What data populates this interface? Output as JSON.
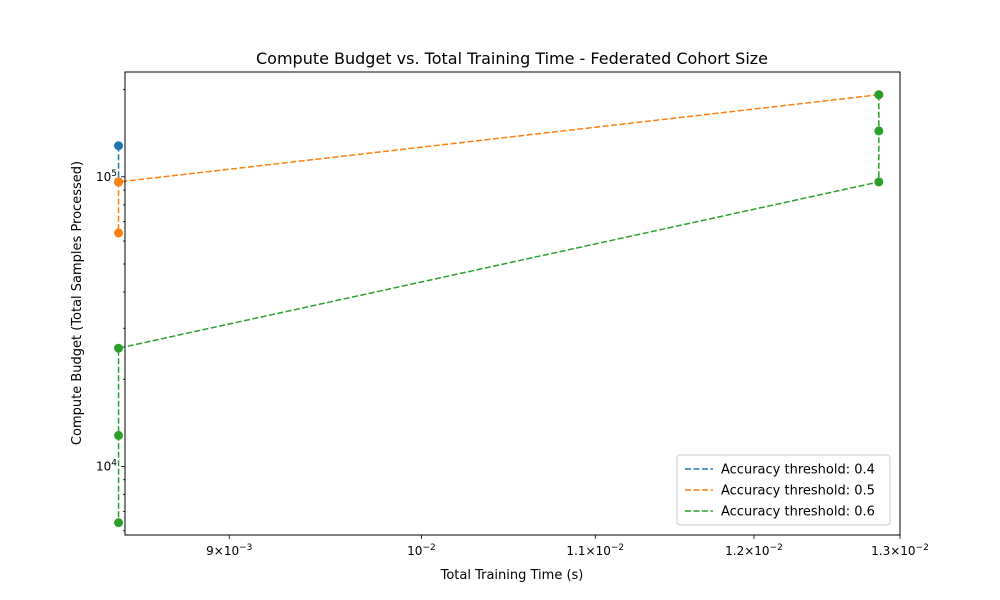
{
  "chart_data": {
    "type": "line",
    "title": "Compute Budget vs. Total Training Time - Federated Cohort Size",
    "xlabel": "Total Training Time (s)",
    "ylabel": "Compute Budget (Total Samples Processed)",
    "x_scale": "log",
    "y_scale": "log",
    "xlim": [
      0.0085,
      0.013
    ],
    "ylim": [
      5800,
      230000
    ],
    "grid": false,
    "legend_position": "lower-right",
    "x_ticks": [
      {
        "value": 0.009,
        "base": "9",
        "mult": "×",
        "pow": "10",
        "exp": "−3"
      },
      {
        "value": 0.01,
        "base": "",
        "mult": "",
        "pow": "10",
        "exp": "−2"
      },
      {
        "value": 0.011,
        "base": "1.1",
        "mult": "×",
        "pow": "10",
        "exp": "−2"
      },
      {
        "value": 0.012,
        "base": "1.2",
        "mult": "×",
        "pow": "10",
        "exp": "−2"
      },
      {
        "value": 0.013,
        "base": "1.3",
        "mult": "×",
        "pow": "10",
        "exp": "−2"
      }
    ],
    "y_ticks": [
      {
        "value": 10000,
        "pow": "10",
        "exp": "4"
      },
      {
        "value": 100000,
        "pow": "10",
        "exp": "5"
      }
    ],
    "series": [
      {
        "name": "Accuracy threshold: 0.4",
        "color": "#1f77b4",
        "x": [
          0.00847,
          0.00847
        ],
        "y": [
          128000,
          96000
        ]
      },
      {
        "name": "Accuracy threshold: 0.5",
        "color": "#ff7f0e",
        "x": [
          0.01285,
          0.00847,
          0.00847
        ],
        "y": [
          192000,
          96000,
          64000
        ]
      },
      {
        "name": "Accuracy threshold: 0.6",
        "color": "#2ca02c",
        "x": [
          0.01285,
          0.01285,
          0.01285,
          0.00847,
          0.00847,
          0.00847
        ],
        "y": [
          192000,
          144000,
          96000,
          25600,
          12800,
          6400
        ]
      }
    ]
  }
}
